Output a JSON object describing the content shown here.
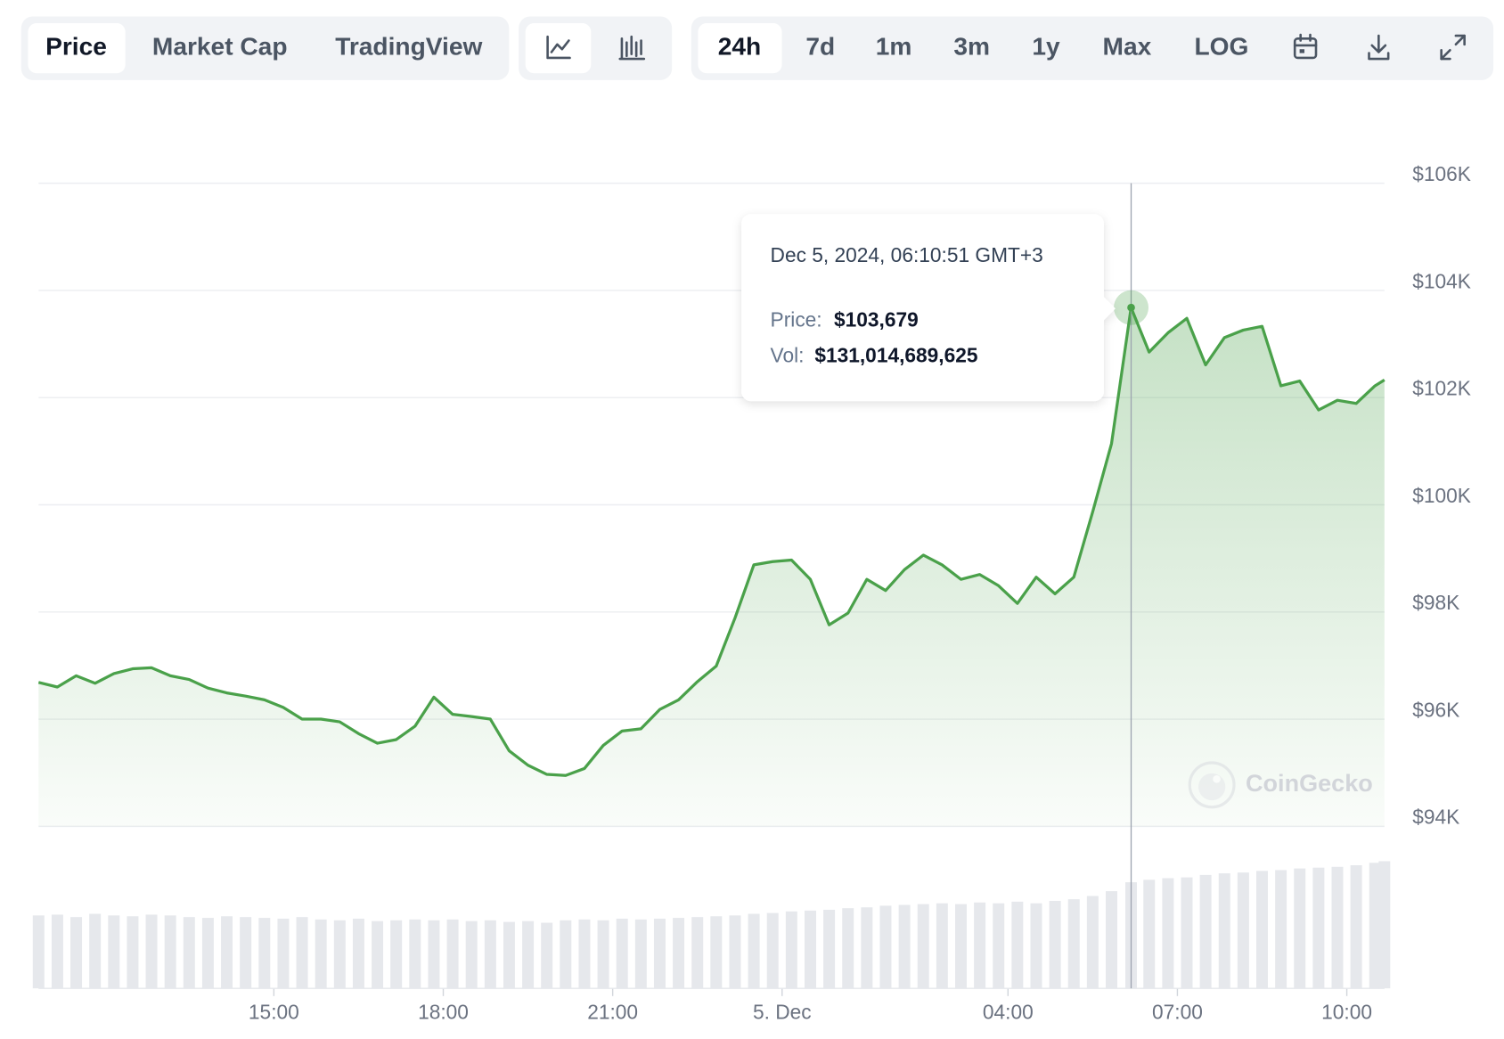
{
  "toolbar": {
    "tabs": [
      "Price",
      "Market Cap",
      "TradingView"
    ],
    "ranges": [
      "24h",
      "7d",
      "1m",
      "3m",
      "1y",
      "Max",
      "LOG"
    ]
  },
  "chart_data": {
    "type": "line",
    "color": "#4aa14a",
    "volume_color": "#e6e8ec",
    "grid": true,
    "x": [
      "2024-12-04T10:50",
      "2024-12-04T11:10",
      "2024-12-04T11:30",
      "2024-12-04T11:50",
      "2024-12-04T12:10",
      "2024-12-04T12:30",
      "2024-12-04T12:50",
      "2024-12-04T13:10",
      "2024-12-04T13:30",
      "2024-12-04T13:50",
      "2024-12-04T14:10",
      "2024-12-04T14:30",
      "2024-12-04T14:50",
      "2024-12-04T15:10",
      "2024-12-04T15:30",
      "2024-12-04T15:50",
      "2024-12-04T16:10",
      "2024-12-04T16:30",
      "2024-12-04T16:50",
      "2024-12-04T17:10",
      "2024-12-04T17:30",
      "2024-12-04T17:50",
      "2024-12-04T18:10",
      "2024-12-04T18:30",
      "2024-12-04T18:50",
      "2024-12-04T19:10",
      "2024-12-04T19:30",
      "2024-12-04T19:50",
      "2024-12-04T20:10",
      "2024-12-04T20:30",
      "2024-12-04T20:50",
      "2024-12-04T21:10",
      "2024-12-04T21:30",
      "2024-12-04T21:50",
      "2024-12-04T22:10",
      "2024-12-04T22:30",
      "2024-12-04T22:50",
      "2024-12-04T23:10",
      "2024-12-04T23:30",
      "2024-12-04T23:50",
      "2024-12-05T00:10",
      "2024-12-05T00:30",
      "2024-12-05T00:50",
      "2024-12-05T01:10",
      "2024-12-05T01:30",
      "2024-12-05T01:50",
      "2024-12-05T02:10",
      "2024-12-05T02:30",
      "2024-12-05T02:50",
      "2024-12-05T03:10",
      "2024-12-05T03:30",
      "2024-12-05T03:50",
      "2024-12-05T04:10",
      "2024-12-05T04:30",
      "2024-12-05T04:50",
      "2024-12-05T05:10",
      "2024-12-05T05:30",
      "2024-12-05T05:50",
      "2024-12-05T06:10:51",
      "2024-12-05T06:30",
      "2024-12-05T06:50",
      "2024-12-05T07:10",
      "2024-12-05T07:30",
      "2024-12-05T07:50",
      "2024-12-05T08:10",
      "2024-12-05T08:30",
      "2024-12-05T08:50",
      "2024-12-05T09:10",
      "2024-12-05T09:30",
      "2024-12-05T09:50",
      "2024-12-05T10:10",
      "2024-12-05T10:30",
      "2024-12-05T10:40"
    ],
    "values": [
      96686,
      96600,
      96810,
      96670,
      96850,
      96940,
      96960,
      96810,
      96740,
      96580,
      96490,
      96430,
      96360,
      96220,
      96000,
      96000,
      95950,
      95730,
      95550,
      95620,
      95870,
      96410,
      96090,
      96050,
      96000,
      95410,
      95140,
      94970,
      94950,
      95080,
      95510,
      95780,
      95820,
      96180,
      96360,
      96700,
      96990,
      97890,
      98880,
      98940,
      98970,
      98610,
      97760,
      97980,
      98610,
      98400,
      98790,
      99060,
      98880,
      98610,
      98700,
      98490,
      98160,
      98650,
      98340,
      98650,
      99870,
      101140,
      103679,
      102850,
      103210,
      103480,
      102610,
      103120,
      103260,
      103330,
      102220,
      102310,
      101770,
      101950,
      101890,
      102220,
      102330
    ],
    "volume": [
      90000000000.0,
      91000000000.0,
      88000000000.0,
      92000000000.0,
      90000000000.0,
      89000000000.0,
      91000000000.0,
      90000000000.0,
      88000000000.0,
      87000000000.0,
      89000000000.0,
      88000000000.0,
      87000000000.0,
      86000000000.0,
      88000000000.0,
      85000000000.0,
      84000000000.0,
      86000000000.0,
      83000000000.0,
      84000000000.0,
      85000000000.0,
      84000000000.0,
      85000000000.0,
      83000000000.0,
      84000000000.0,
      82000000000.0,
      83000000000.0,
      81000000000.0,
      84000000000.0,
      85000000000.0,
      84000000000.0,
      86000000000.0,
      85000000000.0,
      86000000000.0,
      87000000000.0,
      88000000000.0,
      89000000000.0,
      90000000000.0,
      92000000000.0,
      93000000000.0,
      95000000000.0,
      96000000000.0,
      97000000000.0,
      99000000000.0,
      100000000000.0,
      102000000000.0,
      103000000000.0,
      104000000000.0,
      105000000000.0,
      104000000000.0,
      106000000000.0,
      105000000000.0,
      107000000000.0,
      105000000000.0,
      108000000000.0,
      110000000000.0,
      114000000000.0,
      120000000000.0,
      131014689625,
      134000000000.0,
      136000000000.0,
      137000000000.0,
      140000000000.0,
      142000000000.0,
      143000000000.0,
      145000000000.0,
      146000000000.0,
      148000000000.0,
      149000000000.0,
      150000000000.0,
      152000000000.0,
      155000000000.0,
      157000000000.0
    ],
    "xlim": [
      "2024-12-04T10:50",
      "2024-12-05T10:40"
    ],
    "xticks": [
      {
        "value": "2024-12-04T15:00",
        "label": "15:00"
      },
      {
        "value": "2024-12-04T18:00",
        "label": "18:00"
      },
      {
        "value": "2024-12-04T21:00",
        "label": "21:00"
      },
      {
        "value": "2024-12-05T00:00",
        "label": "5. Dec"
      },
      {
        "value": "2024-12-05T04:00",
        "label": "04:00"
      },
      {
        "value": "2024-12-05T07:00",
        "label": "07:00"
      },
      {
        "value": "2024-12-05T10:00",
        "label": "10:00"
      }
    ],
    "ylim": [
      94000,
      106000
    ],
    "yticks": [
      {
        "value": 94000,
        "label": "$94K"
      },
      {
        "value": 96000,
        "label": "$96K"
      },
      {
        "value": 98000,
        "label": "$98K"
      },
      {
        "value": 100000,
        "label": "$100K"
      },
      {
        "value": 102000,
        "label": "$102K"
      },
      {
        "value": 104000,
        "label": "$104K"
      },
      {
        "value": 106000,
        "label": "$106K"
      }
    ],
    "y2lim": [
      0,
      200000000000
    ],
    "tooltip": {
      "date": "Dec 5, 2024, 06:10:51 GMT+3",
      "price_label": "Price:",
      "price": "$103,679",
      "volume_label": "Vol:",
      "volume": "$131,014,689,625"
    },
    "watermark": "CoinGecko"
  }
}
